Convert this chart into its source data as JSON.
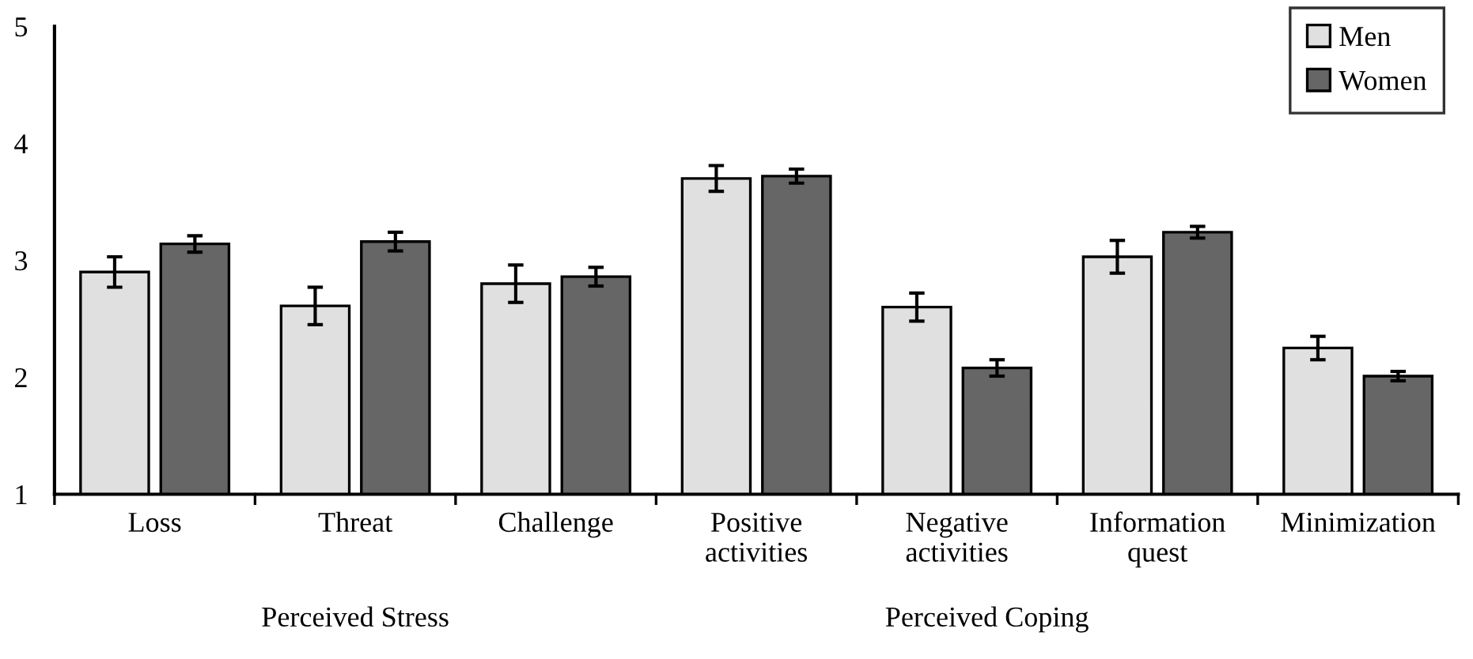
{
  "chart_data": {
    "type": "bar",
    "categories": [
      "Loss",
      "Threat",
      "Challenge",
      "Positive\nactivities",
      "Negative\nactivities",
      "Information\nquest",
      "Minimization"
    ],
    "series": [
      {
        "name": "Men",
        "color": "#e0e0e0",
        "values": [
          2.9,
          2.61,
          2.8,
          3.7,
          2.6,
          3.03,
          2.25
        ],
        "errors": [
          0.13,
          0.16,
          0.16,
          0.11,
          0.12,
          0.14,
          0.1
        ]
      },
      {
        "name": "Women",
        "color": "#666666",
        "values": [
          3.14,
          3.16,
          2.86,
          3.72,
          2.08,
          3.24,
          2.01
        ],
        "errors": [
          0.07,
          0.08,
          0.08,
          0.06,
          0.07,
          0.05,
          0.04
        ]
      }
    ],
    "annotations": [
      "Perceived Stress",
      "Perceived Coping"
    ],
    "ylim": [
      1,
      5
    ],
    "yticks": [
      1,
      2,
      3,
      4,
      5
    ],
    "grid": false,
    "legend": "top right"
  }
}
